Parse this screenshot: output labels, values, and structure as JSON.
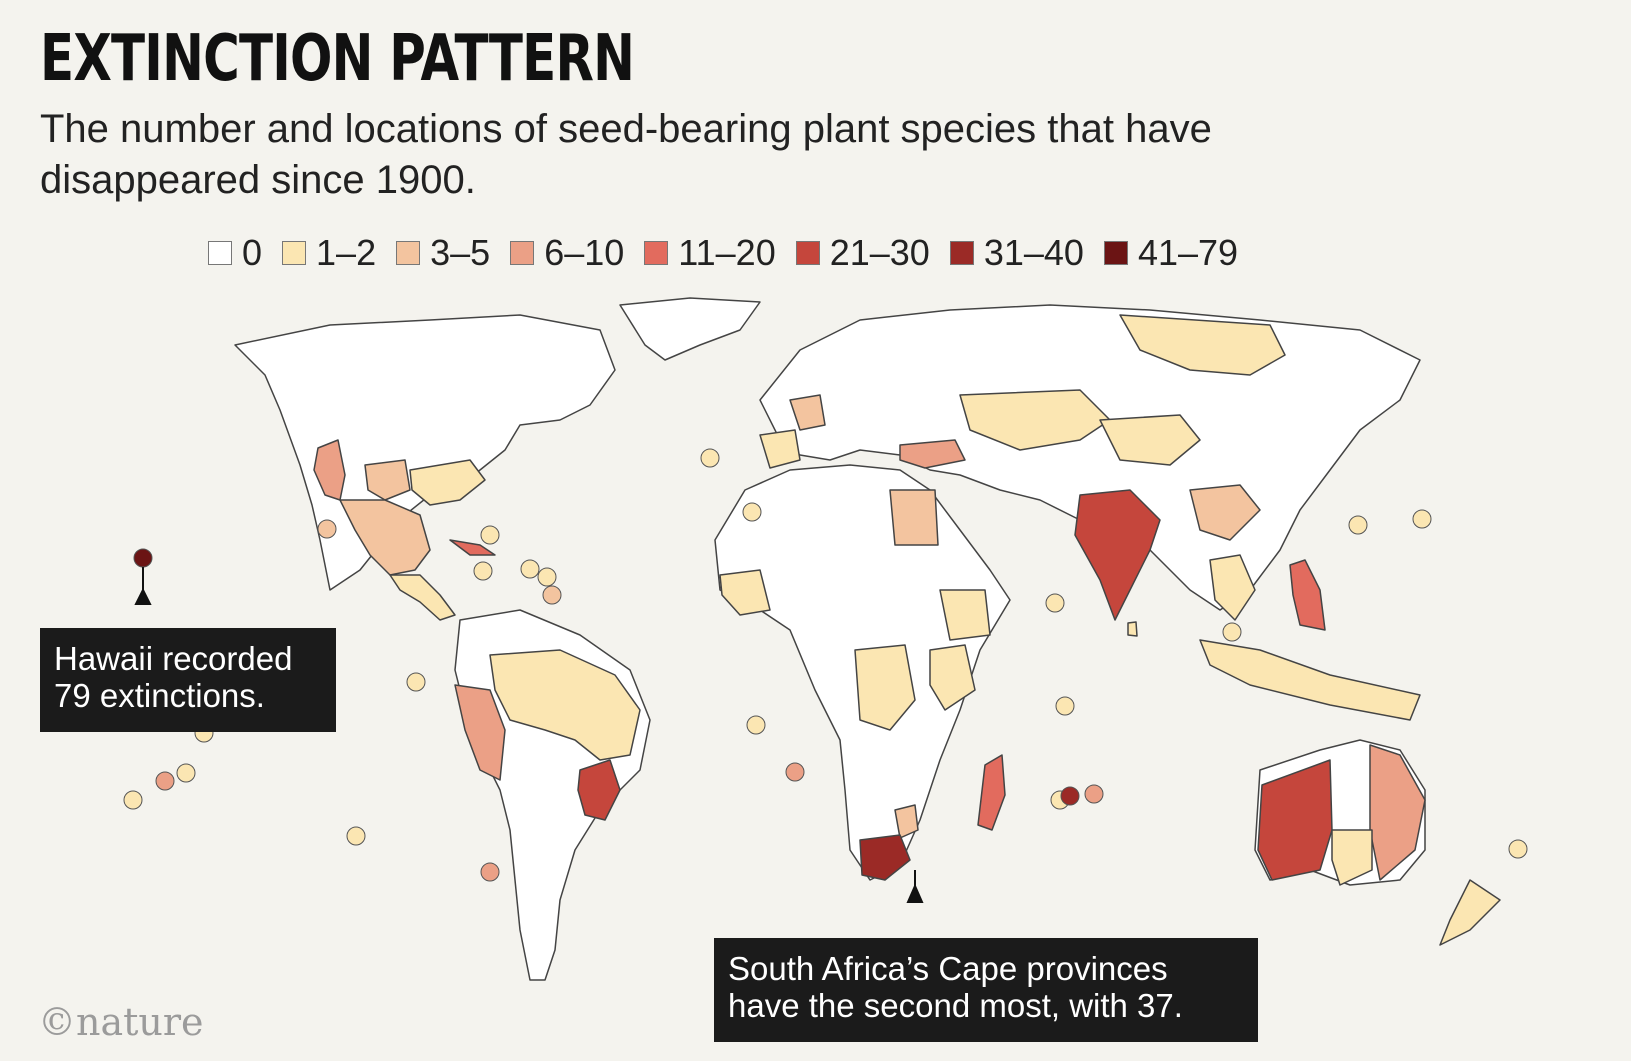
{
  "header": {
    "title": "EXTINCTION PATTERN",
    "subtitle": "The number and locations of seed-bearing plant species that have disappeared since 1900."
  },
  "legend": [
    {
      "label": "0",
      "color": "#ffffff"
    },
    {
      "label": "1–2",
      "color": "#fbe6b2"
    },
    {
      "label": "3–5",
      "color": "#f3c49f"
    },
    {
      "label": "6–10",
      "color": "#eba086"
    },
    {
      "label": "11–20",
      "color": "#e26b5e"
    },
    {
      "label": "21–30",
      "color": "#c5463c"
    },
    {
      "label": "31–40",
      "color": "#9b2a26"
    },
    {
      "label": "41–79",
      "color": "#6b1414"
    }
  ],
  "callouts": {
    "hawaii": "Hawaii recorded 79 extinctions.",
    "south_africa": "South Africa’s Cape provinces have the second most, with 37."
  },
  "credit": "©nature",
  "map": {
    "ocean_color": "#f4f3ee",
    "land_default_color": "#ffffff",
    "border_color": "#444444",
    "regions": [
      {
        "name": "Hawaii",
        "bin": "41–79"
      },
      {
        "name": "South Africa Cape provinces",
        "bin": "31–40"
      },
      {
        "name": "India",
        "bin": "21–30"
      },
      {
        "name": "Western Australia",
        "bin": "21–30"
      },
      {
        "name": "South-eastern Brazil",
        "bin": "21–30"
      },
      {
        "name": "Philippines",
        "bin": "11–20"
      },
      {
        "name": "Madagascar",
        "bin": "11–20"
      },
      {
        "name": "Cuba",
        "bin": "11–20"
      },
      {
        "name": "Peru",
        "bin": "6–10"
      },
      {
        "name": "Turkey",
        "bin": "6–10"
      },
      {
        "name": "California",
        "bin": "6–10"
      },
      {
        "name": "Eastern Australia",
        "bin": "6–10"
      },
      {
        "name": "Mexico",
        "bin": "3–5"
      },
      {
        "name": "Egypt",
        "bin": "3–5"
      },
      {
        "name": "Southern China",
        "bin": "3–5"
      },
      {
        "name": "Russia (Siberia)",
        "bin": "1–2"
      },
      {
        "name": "Brazil",
        "bin": "1–2"
      },
      {
        "name": "Central Asia",
        "bin": "1–2"
      },
      {
        "name": "Congo",
        "bin": "1–2"
      },
      {
        "name": "Tanzania",
        "bin": "1–2"
      }
    ]
  }
}
